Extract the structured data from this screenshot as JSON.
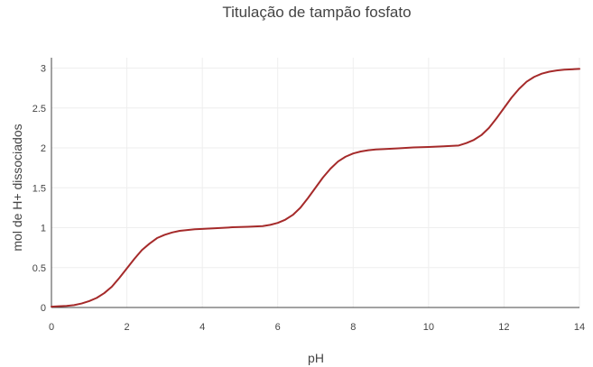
{
  "chart_data": {
    "type": "line",
    "title": "Titulação de tampão fosfato",
    "xlabel": "pH",
    "ylabel": "mol de H+ dissociados",
    "xlim": [
      0,
      14
    ],
    "ylim": [
      0,
      3.13
    ],
    "xticks": [
      0,
      2,
      4,
      6,
      8,
      10,
      12,
      14
    ],
    "yticks": [
      0,
      0.5,
      1,
      1.5,
      2,
      2.5,
      3
    ],
    "ytick_labels": [
      "0",
      "0.5",
      "1",
      "1.5",
      "2",
      "2.5",
      "3"
    ],
    "grid": true,
    "colors": {
      "line": "#a52a2a",
      "grid": "#eeeeee",
      "axis": "#444444"
    },
    "series": [
      {
        "x": [
          0,
          0.2,
          0.4,
          0.6,
          0.8,
          1.0,
          1.2,
          1.4,
          1.6,
          1.8,
          2.0,
          2.2,
          2.4,
          2.6,
          2.8,
          3.0,
          3.2,
          3.4,
          3.6,
          3.8,
          4.0,
          4.4,
          4.8,
          5.2,
          5.6,
          5.8,
          6.0,
          6.2,
          6.4,
          6.6,
          6.8,
          7.0,
          7.2,
          7.4,
          7.6,
          7.8,
          8.0,
          8.2,
          8.4,
          8.6,
          8.8,
          9.2,
          9.6,
          10.0,
          10.4,
          10.8,
          11.0,
          11.2,
          11.4,
          11.6,
          11.8,
          12.0,
          12.2,
          12.4,
          12.6,
          12.8,
          13.0,
          13.2,
          13.4,
          13.6,
          13.8,
          14.0
        ],
        "values": [
          0.01,
          0.015,
          0.02,
          0.03,
          0.05,
          0.08,
          0.12,
          0.18,
          0.26,
          0.37,
          0.49,
          0.61,
          0.72,
          0.8,
          0.87,
          0.91,
          0.94,
          0.96,
          0.97,
          0.98,
          0.985,
          0.995,
          1.005,
          1.012,
          1.02,
          1.035,
          1.06,
          1.1,
          1.16,
          1.25,
          1.37,
          1.5,
          1.63,
          1.74,
          1.83,
          1.89,
          1.93,
          1.955,
          1.97,
          1.98,
          1.985,
          1.995,
          2.005,
          2.012,
          2.02,
          2.03,
          2.06,
          2.1,
          2.16,
          2.25,
          2.37,
          2.5,
          2.63,
          2.74,
          2.83,
          2.89,
          2.93,
          2.955,
          2.97,
          2.98,
          2.985,
          2.99
        ]
      }
    ]
  }
}
